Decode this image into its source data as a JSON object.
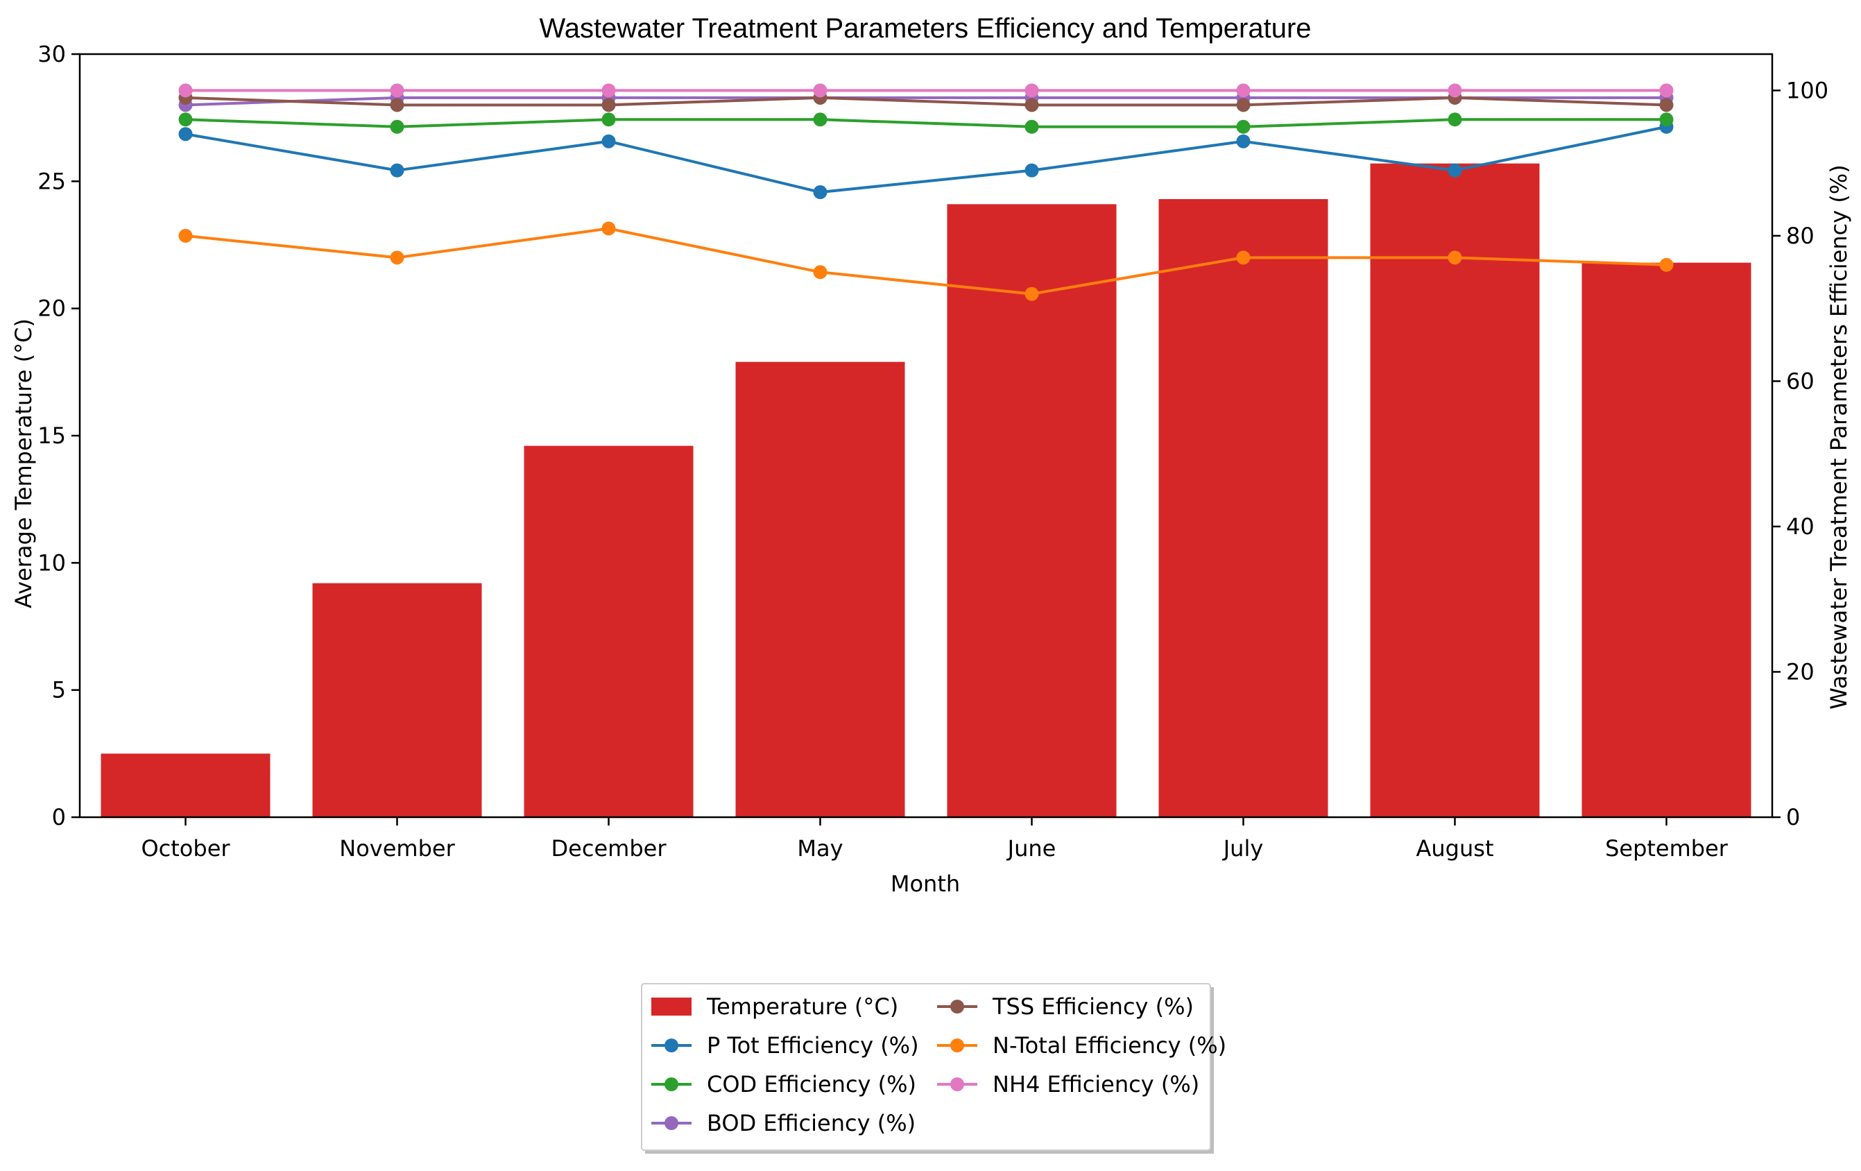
{
  "chart_data": {
    "type": "bar",
    "title": "Wastewater Treatment Parameters Efficiency and Temperature",
    "xlabel": "Month",
    "ylabel": "Average Temperature (°C)",
    "y2label": "Wastewater Treatment Parameters Efficiency (%)",
    "categories": [
      "October",
      "November",
      "December",
      "May",
      "June",
      "July",
      "August",
      "September"
    ],
    "ylim": [
      0,
      30
    ],
    "y2lim": [
      0,
      105
    ],
    "yticks": [
      0,
      5,
      10,
      15,
      20,
      25,
      30
    ],
    "y2ticks": [
      0,
      20,
      40,
      60,
      80,
      100
    ],
    "grid": false,
    "legend_placement": "bottom-center",
    "bar_series": {
      "name": "Temperature (°C)",
      "color": "#d62728",
      "values": [
        2.5,
        9.2,
        14.6,
        17.9,
        24.1,
        24.3,
        25.7,
        21.8
      ]
    },
    "line_series": [
      {
        "name": "P Tot Efficiency (%)",
        "color": "#1f77b4",
        "values": [
          94,
          89,
          93,
          86,
          89,
          93,
          89,
          95
        ]
      },
      {
        "name": "COD Efficiency (%)",
        "color": "#2ca02c",
        "values": [
          96,
          95,
          96,
          96,
          95,
          95,
          96,
          96
        ]
      },
      {
        "name": "BOD Efficiency (%)",
        "color": "#9467bd",
        "values": [
          98,
          99,
          99,
          99,
          99,
          99,
          99,
          99
        ]
      },
      {
        "name": "TSS Efficiency (%)",
        "color": "#8c564b",
        "values": [
          99,
          98,
          98,
          99,
          98,
          98,
          99,
          98
        ]
      },
      {
        "name": "N-Total Efficiency (%)",
        "color": "#ff7f0e",
        "values": [
          80,
          77,
          81,
          75,
          72,
          77,
          77,
          76
        ]
      },
      {
        "name": "NH4 Efficiency (%)",
        "color": "#e377c2",
        "values": [
          100,
          100,
          100,
          100,
          100,
          100,
          100,
          100
        ]
      }
    ],
    "legend_order": [
      {
        "kind": "bar",
        "index": 0
      },
      {
        "kind": "line",
        "index": 0
      },
      {
        "kind": "line",
        "index": 1
      },
      {
        "kind": "line",
        "index": 2
      },
      {
        "kind": "line",
        "index": 3
      },
      {
        "kind": "line",
        "index": 4
      },
      {
        "kind": "line",
        "index": 5
      }
    ]
  }
}
